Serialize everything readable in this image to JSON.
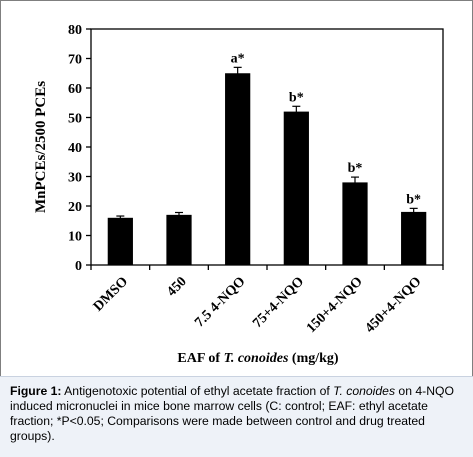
{
  "chart_data": {
    "type": "bar",
    "categories": [
      "DMSO",
      "450",
      "7.5 4-NQO",
      "75+4-NQO",
      "150+4-NQO",
      "450+4-NQO"
    ],
    "values": [
      16,
      17,
      65,
      52,
      28,
      18
    ],
    "errors": [
      0.6,
      0.8,
      2.0,
      1.8,
      1.8,
      1.2
    ],
    "annotations": [
      "",
      "",
      "a*",
      "b*",
      "b*",
      "b*"
    ],
    "ylabel": "MnPCEs/2500 PCEs",
    "xlabel_prefix": "EAF of ",
    "xlabel_species": "T. conoides",
    "xlabel_suffix": " (mg/kg)",
    "ylim": [
      0,
      80
    ],
    "yticks": [
      0,
      10,
      20,
      30,
      40,
      50,
      60,
      70,
      80
    ],
    "bar_color": "#000000",
    "grid": false
  },
  "caption": {
    "label": "Figure 1:",
    "text_1": " Antigenotoxic potential of ethyl acetate fraction of ",
    "species": "T. conoides",
    "text_2": " on 4-NQO induced micronuclei in mice bone marrow cells (C: control; EAF: ethyl acetate fraction; *P<0.05; Comparisons were made between control and drug treated groups)."
  }
}
